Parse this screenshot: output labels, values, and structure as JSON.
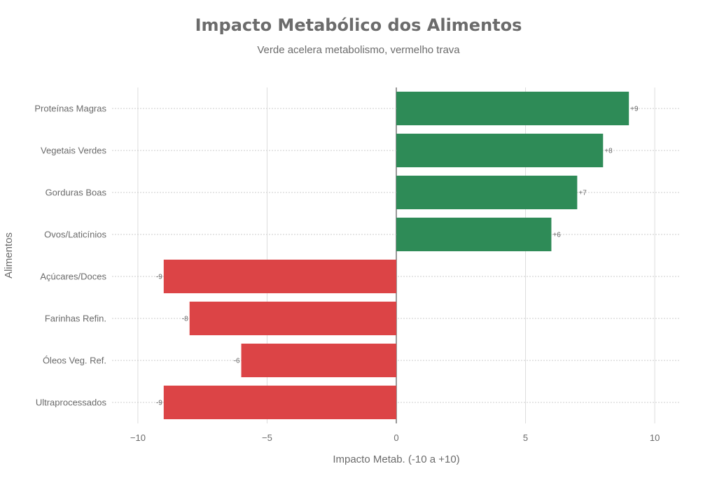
{
  "chart_data": {
    "type": "bar",
    "orientation": "horizontal",
    "title": "Impacto Metabólico dos Alimentos",
    "subtitle": "Verde acelera metabolismo, vermelho trava",
    "xlabel": "Impacto Metab. (-10 a +10)",
    "ylabel": "Alimentos",
    "xlim": [
      -11,
      11
    ],
    "xticks": [
      -10,
      -5,
      0,
      5,
      10
    ],
    "xtick_labels": [
      "−10",
      "−5",
      "0",
      "5",
      "10"
    ],
    "categories": [
      "Proteínas Magras",
      "Vegetais Verdes",
      "Gorduras Boas",
      "Ovos/Laticínios",
      "Açúcares/Doces",
      "Farinhas Refin.",
      "Óleos Veg. Ref.",
      "Ultraprocessados"
    ],
    "values": [
      9,
      8,
      7,
      6,
      -9,
      -8,
      -6,
      -9
    ],
    "data_labels": [
      "+9",
      "+8",
      "+7",
      "+6",
      "-9",
      "-8",
      "-6",
      "-9"
    ],
    "colors": {
      "positive": "#2e8b57",
      "negative": "#dc4446"
    },
    "grid": true
  }
}
